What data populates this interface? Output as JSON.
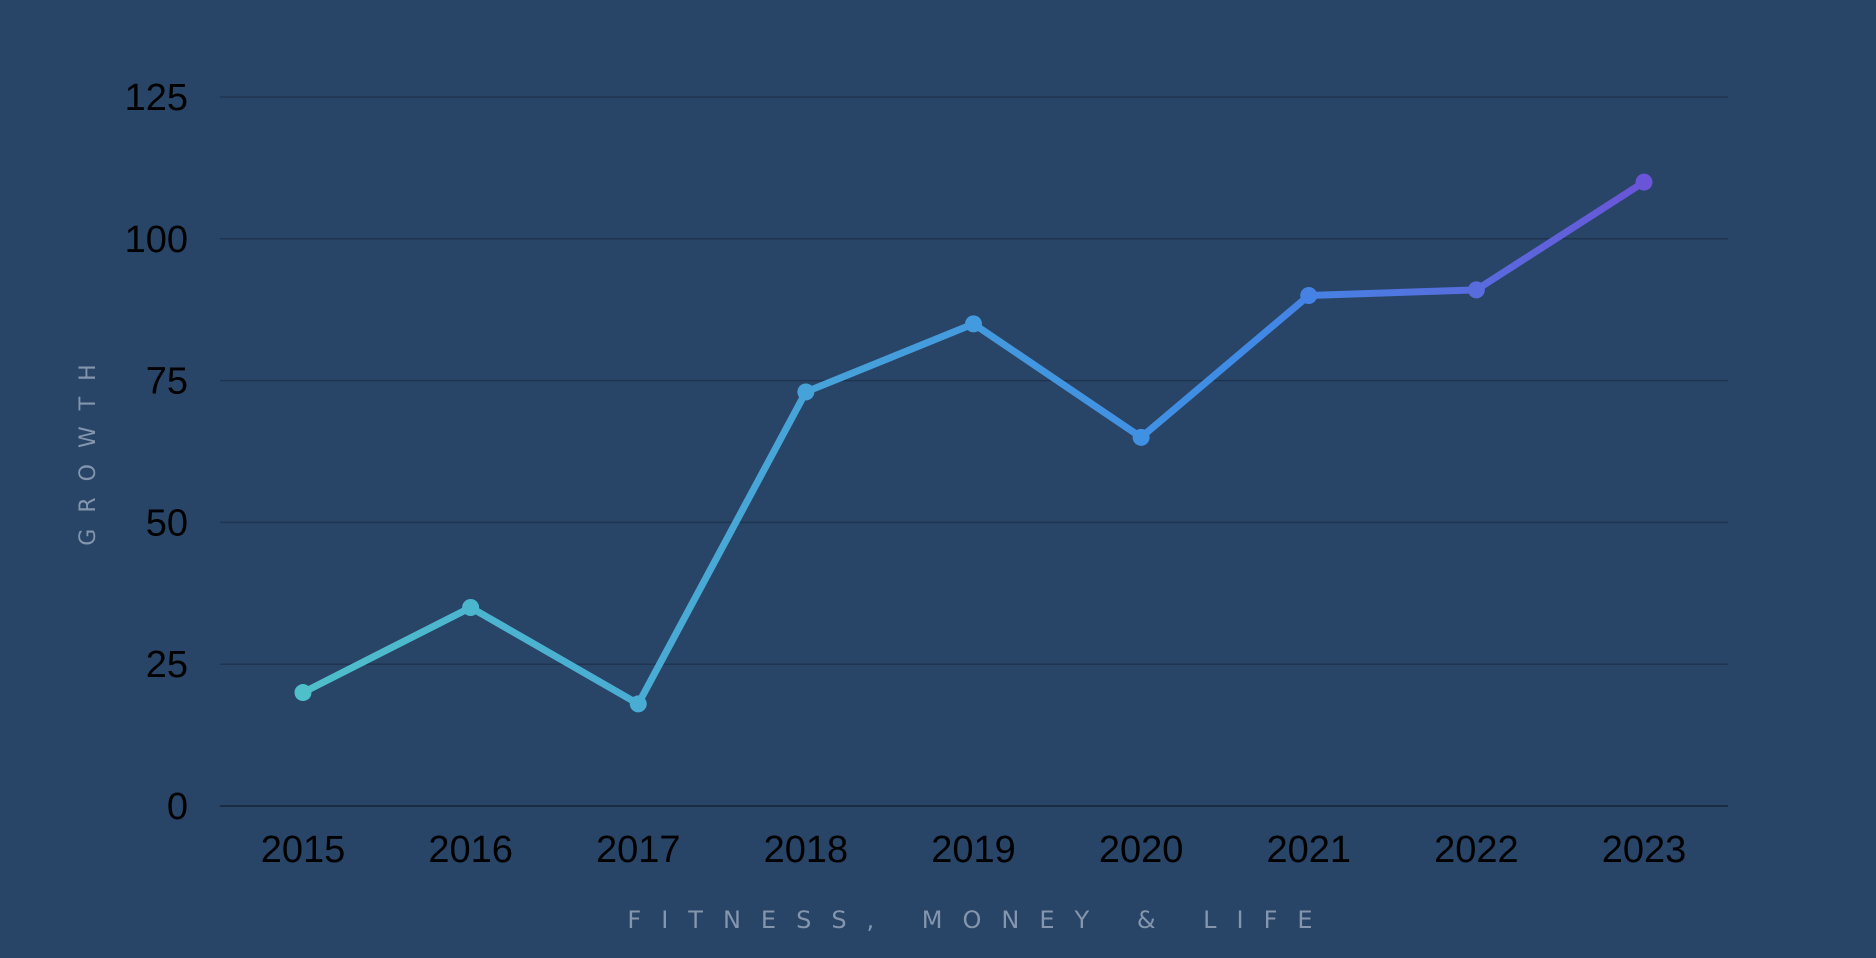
{
  "chart_data": {
    "type": "line",
    "title": "",
    "xlabel": "FITNESS, MONEY & LIFE",
    "ylabel": "GROWTH",
    "categories": [
      "2015",
      "2016",
      "2017",
      "2018",
      "2019",
      "2020",
      "2021",
      "2022",
      "2023"
    ],
    "series": [
      {
        "values": [
          20,
          35,
          18,
          73,
          85,
          65,
          90,
          91,
          110
        ]
      }
    ],
    "ylim": [
      0,
      125
    ],
    "yticks": [
      0,
      25,
      50,
      75,
      100,
      125
    ],
    "grid": true,
    "legend": "none",
    "colors": {
      "background": "#284467",
      "line_start": "#4fbfc9",
      "line_mid": "#3f8be6",
      "line_end": "#6a55d8"
    }
  }
}
